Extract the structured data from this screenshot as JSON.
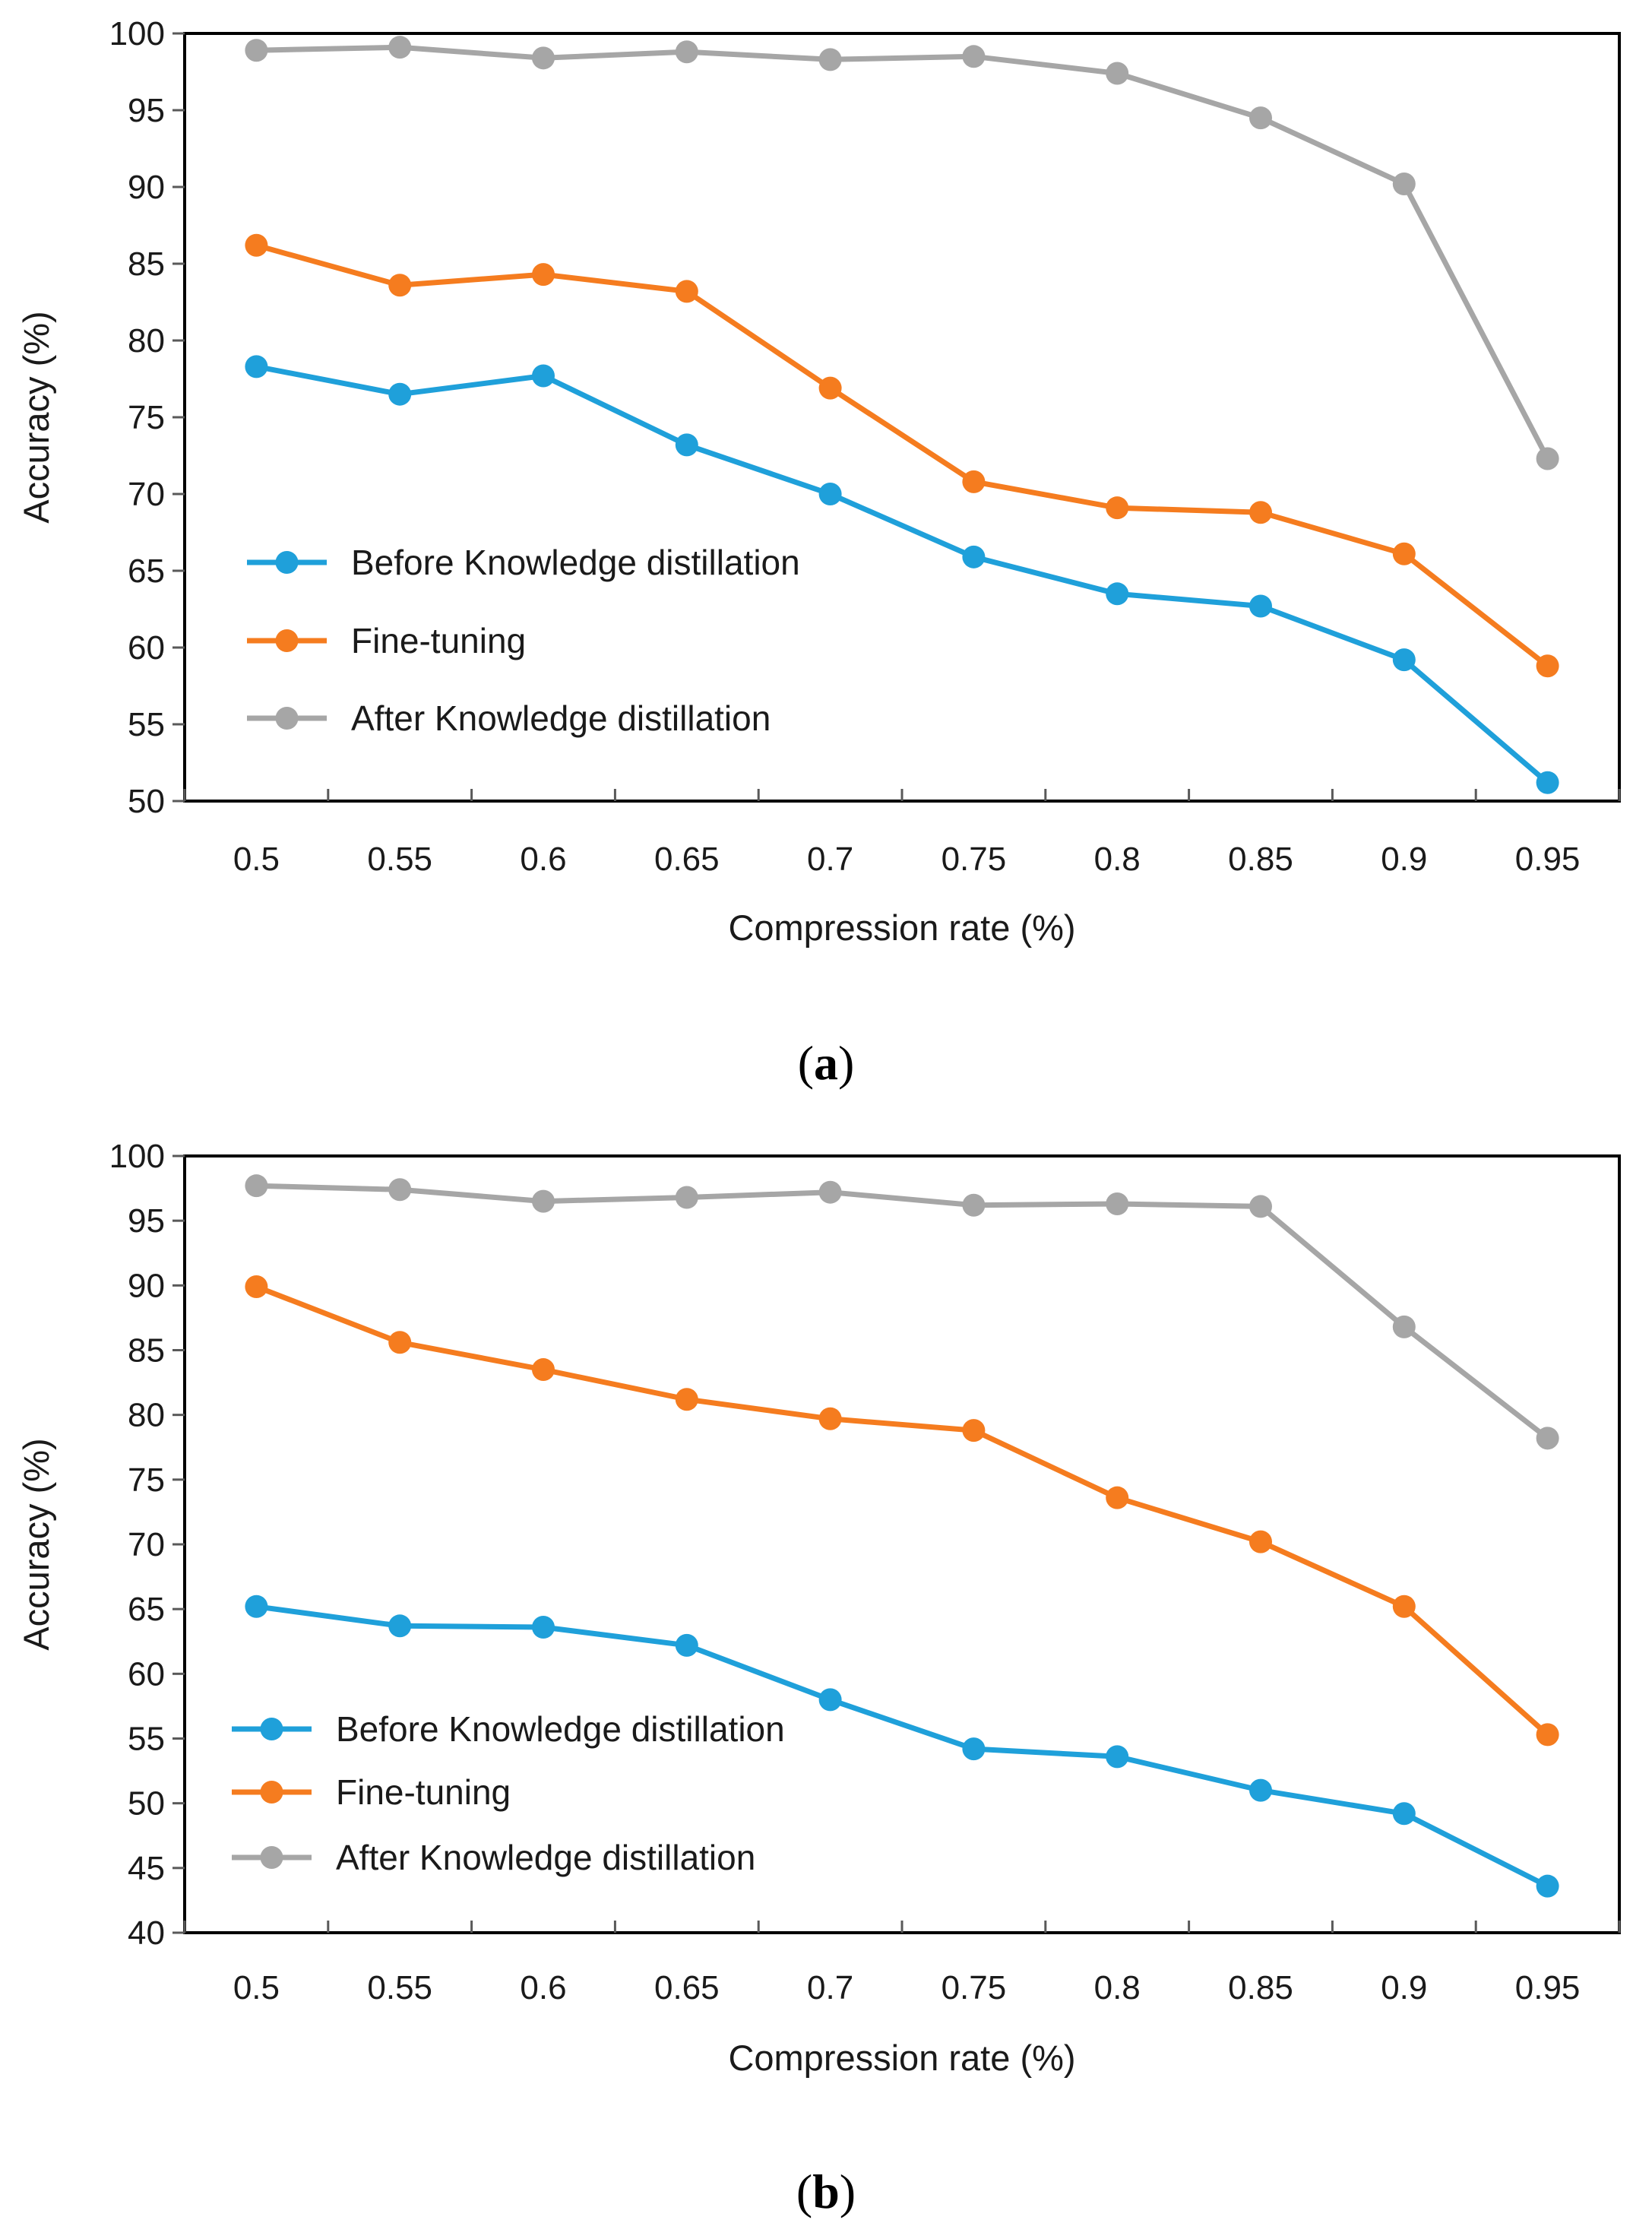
{
  "colors": {
    "before": "#1fa0da",
    "finetune": "#f57c1f",
    "after": "#a6a6a6",
    "axes": "#000000",
    "tick_mark": "#595959"
  },
  "chart_data": [
    {
      "type": "line",
      "caption": "a",
      "xlabel": "Compression rate (%)",
      "ylabel": "Accuracy (%)",
      "ylim": [
        50,
        100
      ],
      "ytick_step": 5,
      "yticks": [
        "50",
        "55",
        "60",
        "65",
        "70",
        "75",
        "80",
        "85",
        "90",
        "95",
        "100"
      ],
      "categories": [
        "0.5",
        "0.55",
        "0.6",
        "0.65",
        "0.7",
        "0.75",
        "0.8",
        "0.85",
        "0.9",
        "0.95"
      ],
      "grid": false,
      "legend_position": "lower-left",
      "series": [
        {
          "key": "before",
          "name": "Before Knowledge distillation",
          "values": [
            78.3,
            76.5,
            77.7,
            73.2,
            70.0,
            65.9,
            63.5,
            62.7,
            59.2,
            51.2
          ]
        },
        {
          "key": "finetune",
          "name": "Fine-tuning",
          "values": [
            86.2,
            83.6,
            84.3,
            83.2,
            76.9,
            70.8,
            69.1,
            68.8,
            66.1,
            58.8
          ]
        },
        {
          "key": "after",
          "name": "After Knowledge distillation",
          "values": [
            98.9,
            99.1,
            98.4,
            98.8,
            98.3,
            98.5,
            97.4,
            94.5,
            90.2,
            72.3
          ]
        }
      ]
    },
    {
      "type": "line",
      "caption": "b",
      "xlabel": "Compression rate (%)",
      "ylabel": "Accuracy (%)",
      "ylim": [
        40,
        100
      ],
      "ytick_step": 5,
      "yticks": [
        "40",
        "45",
        "50",
        "55",
        "60",
        "65",
        "70",
        "75",
        "80",
        "85",
        "90",
        "95",
        "100"
      ],
      "categories": [
        "0.5",
        "0.55",
        "0.6",
        "0.65",
        "0.7",
        "0.75",
        "0.8",
        "0.85",
        "0.9",
        "0.95"
      ],
      "grid": false,
      "legend_position": "lower-left",
      "series": [
        {
          "key": "before",
          "name": "Before Knowledge distillation",
          "values": [
            65.2,
            63.7,
            63.6,
            62.2,
            58.0,
            54.2,
            53.6,
            51.0,
            49.2,
            43.6
          ]
        },
        {
          "key": "finetune",
          "name": "Fine-tuning",
          "values": [
            89.9,
            85.6,
            83.5,
            81.2,
            79.7,
            78.8,
            73.6,
            70.2,
            65.2,
            55.3
          ]
        },
        {
          "key": "after",
          "name": "After Knowledge distillation",
          "values": [
            97.7,
            97.4,
            96.5,
            96.8,
            97.2,
            96.2,
            96.3,
            96.1,
            86.8,
            78.2
          ]
        }
      ]
    }
  ]
}
